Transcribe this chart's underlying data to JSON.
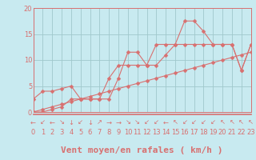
{
  "xlabel": "Vent moyen/en rafales ( km/h )",
  "xlim": [
    0,
    23
  ],
  "ylim": [
    0,
    20
  ],
  "yticks": [
    0,
    5,
    10,
    15,
    20
  ],
  "xticks": [
    0,
    1,
    2,
    3,
    4,
    5,
    6,
    7,
    8,
    9,
    10,
    11,
    12,
    13,
    14,
    15,
    16,
    17,
    18,
    19,
    20,
    21,
    22,
    23
  ],
  "bg_color": "#c8eaf0",
  "grid_color": "#a0c8cc",
  "line_color": "#d87070",
  "line1_x": [
    0,
    1,
    2,
    3,
    4,
    5,
    6,
    7,
    8,
    9,
    10,
    11,
    12,
    13,
    14,
    15,
    16,
    17,
    18,
    19,
    20,
    21,
    22,
    23
  ],
  "line1_y": [
    2.5,
    4,
    4,
    4.5,
    5,
    2.5,
    2.5,
    2.5,
    2.5,
    6.5,
    11.5,
    11.5,
    9,
    13,
    13,
    13,
    17.5,
    17.5,
    15.5,
    13,
    13,
    13,
    8,
    13
  ],
  "line2_x": [
    0,
    1,
    2,
    3,
    4,
    5,
    6,
    7,
    8,
    9,
    10,
    11,
    12,
    13,
    14,
    15,
    16,
    17,
    18,
    19,
    20,
    21,
    22,
    23
  ],
  "line2_y": [
    0,
    0,
    0.5,
    1,
    2.5,
    2.5,
    2.5,
    2.5,
    6.5,
    9,
    9,
    9,
    9,
    9,
    11,
    13,
    13,
    13,
    13,
    13,
    13,
    13,
    8,
    13
  ],
  "line3_x": [
    0,
    1,
    2,
    3,
    4,
    5,
    6,
    7,
    8,
    9,
    10,
    11,
    12,
    13,
    14,
    15,
    16,
    17,
    18,
    19,
    20,
    21,
    22,
    23
  ],
  "line3_y": [
    0,
    0.5,
    1,
    1.5,
    2,
    2.5,
    3,
    3.5,
    4,
    4.5,
    5,
    5.5,
    6,
    6.5,
    7,
    7.5,
    8,
    8.5,
    9,
    9.5,
    10,
    10.5,
    11,
    11.5
  ],
  "arrow_symbols": [
    "←",
    "↙",
    "←",
    "↘",
    "↓",
    "↙",
    "↓",
    "↗",
    "→",
    "→",
    "↘",
    "↘",
    "↙",
    "↙",
    "←",
    "↖",
    "↙",
    "↙",
    "↙",
    "↙",
    "↖",
    "↖",
    "↖",
    "↖"
  ],
  "marker": "D",
  "markersize": 2.5,
  "linewidth": 0.8,
  "tick_fontsize": 6,
  "xlabel_fontsize": 8,
  "arrow_fontsize": 6
}
